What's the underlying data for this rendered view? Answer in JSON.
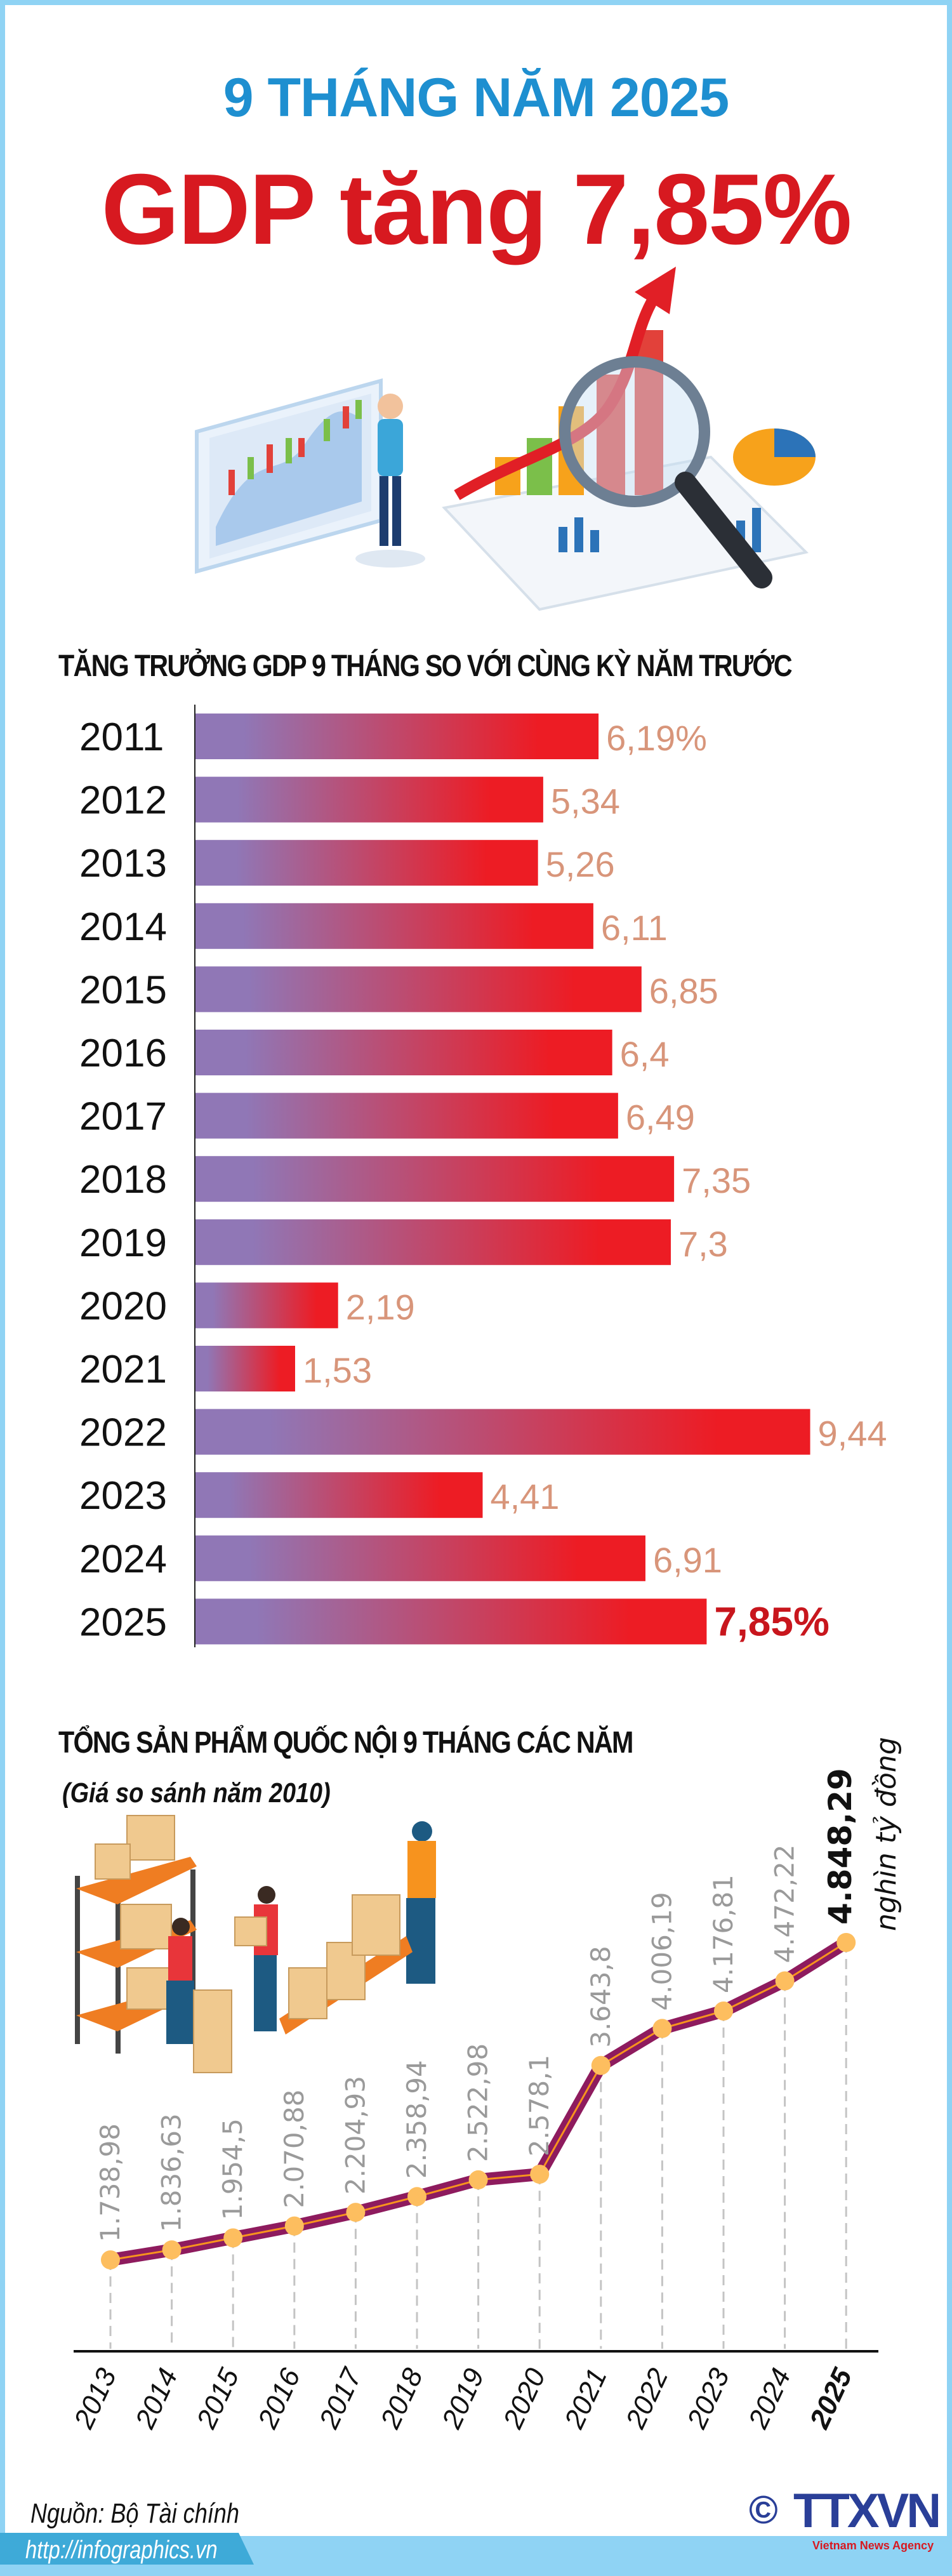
{
  "header": {
    "kicker": "9 THÁNG NĂM 2025",
    "headline": "GDP tăng 7,85%"
  },
  "footer": {
    "source": "Nguồn: Bộ Tài chính",
    "url": "http://infographics.vn",
    "logo_text": "TTXVN",
    "logo_sub": "Vietnam News Agency",
    "copyright": "©"
  },
  "chart_data": [
    {
      "type": "bar",
      "orientation": "horizontal",
      "title": "TĂNG TRƯỞNG GDP 9 THÁNG SO VỚI CÙNG KỲ NĂM TRƯỚC",
      "categories": [
        "2011",
        "2012",
        "2013",
        "2014",
        "2015",
        "2016",
        "2017",
        "2018",
        "2019",
        "2020",
        "2021",
        "2022",
        "2023",
        "2024",
        "2025"
      ],
      "values": [
        6.19,
        5.34,
        5.26,
        6.11,
        6.85,
        6.4,
        6.49,
        7.35,
        7.3,
        2.19,
        1.53,
        9.44,
        4.41,
        6.91,
        7.85
      ],
      "labels": [
        "6,19%",
        "5,34",
        "5,26",
        "6,11",
        "6,85",
        "6,4",
        "6,49",
        "7,35",
        "7,3",
        "2,19",
        "1,53",
        "9,44",
        "4,41",
        "6,91",
        "7,85%"
      ],
      "unit": "%",
      "colors": {
        "gradient_start": "#9077b6",
        "gradient_end": "#ed1c24",
        "label": "#d8957a",
        "highlight": "#c8161d"
      }
    },
    {
      "type": "line",
      "title": "TỔNG SẢN PHẨM QUỐC NỘI 9 THÁNG CÁC NĂM",
      "subtitle": "(Giá so sánh năm 2010)",
      "unit": "nghìn tỷ đồng",
      "categories": [
        "2013",
        "2014",
        "2015",
        "2016",
        "2017",
        "2018",
        "2019",
        "2020",
        "2021",
        "2022",
        "2023",
        "2024",
        "2025"
      ],
      "values": [
        1738.98,
        1836.63,
        1954.5,
        2070.88,
        2204.93,
        2358.94,
        2522.98,
        2578.1,
        3643.8,
        4006.19,
        4176.81,
        4472.22,
        4848.29
      ],
      "labels": [
        "1.738,98",
        "1.836,63",
        "1.954,5",
        "2.070,88",
        "2.204,93",
        "2.358,94",
        "2.522,98",
        "2.578,1",
        "3.643,8",
        "4.006,19",
        "4.176,81",
        "4.472,22",
        "4.848,29"
      ],
      "colors": {
        "line": "#8e1b5e",
        "inner": "#f7931e",
        "marker": "#fdbe5f"
      }
    }
  ]
}
